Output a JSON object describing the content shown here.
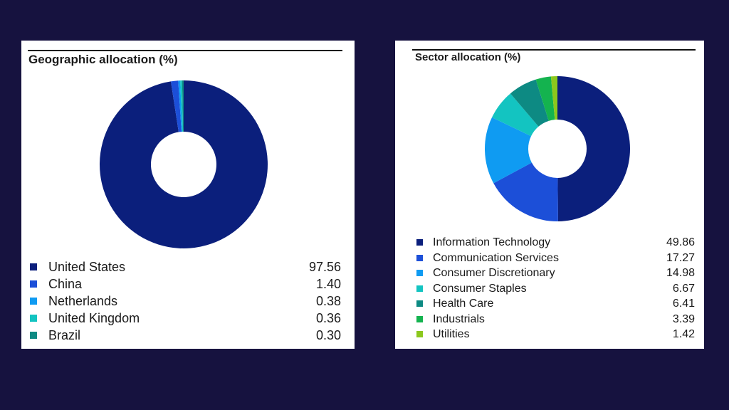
{
  "chart_data": [
    {
      "type": "pie",
      "title": "Geographic allocation (%)",
      "categories": [
        "United States",
        "China",
        "Netherlands",
        "United Kingdom",
        "Brazil"
      ],
      "values": [
        97.56,
        1.4,
        0.38,
        0.36,
        0.3
      ],
      "value_labels": [
        "97.56",
        "1.40",
        "0.38",
        "0.36",
        "0.30"
      ],
      "colors": [
        "#0b1f7c",
        "#1c4fd8",
        "#0f9bf2",
        "#13c4c1",
        "#0d8a83"
      ],
      "legend": "bottom"
    },
    {
      "type": "pie",
      "title": "Sector allocation (%)",
      "categories": [
        "Information Technology",
        "Communication Services",
        "Consumer Discretionary",
        "Consumer Staples",
        "Health Care",
        "Industrials",
        "Utilities"
      ],
      "values": [
        49.86,
        17.27,
        14.98,
        6.67,
        6.41,
        3.39,
        1.42
      ],
      "value_labels": [
        "49.86",
        "17.27",
        "14.98",
        "6.67",
        "6.41",
        "3.39",
        "1.42"
      ],
      "colors": [
        "#0b1f7c",
        "#1c4fd8",
        "#0f9bf2",
        "#13c4c1",
        "#0d8a83",
        "#14b34f",
        "#8cc81d"
      ],
      "legend": "bottom"
    }
  ]
}
